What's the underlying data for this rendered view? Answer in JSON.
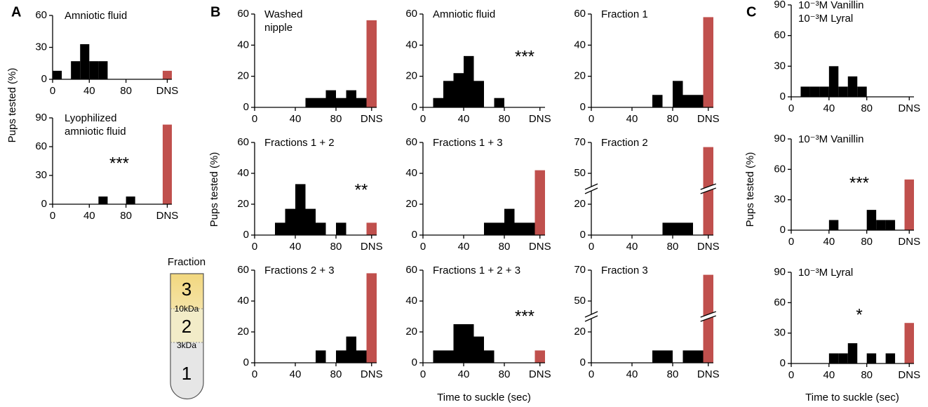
{
  "panels": [
    "A",
    "B",
    "C"
  ],
  "axis_labels": {
    "y": "Pups tested (%)",
    "x": "Time to suckle (sec)"
  },
  "fraction_diagram": {
    "title": "Fraction",
    "sections": [
      "3",
      "2",
      "1"
    ],
    "boundaries": [
      "10kDa",
      "3kDa"
    ]
  },
  "chart_data": [
    {
      "type": "histogram",
      "title": "Amniotic fluid",
      "bins": [
        0,
        10,
        20,
        30,
        40,
        50,
        60,
        70,
        80,
        90,
        100,
        110
      ],
      "values": [
        8,
        0,
        17,
        33,
        17,
        17,
        0,
        0,
        0,
        0,
        0
      ],
      "dns_value": 8,
      "color": "#000000",
      "dns_color": "#c0504d",
      "xlim": [
        0,
        130
      ],
      "xticks": [
        0,
        40,
        80,
        {
          "value": 125,
          "label": "DNS"
        }
      ],
      "ylim": [
        0,
        60
      ],
      "yticks": [
        0,
        30,
        60
      ]
    },
    {
      "type": "histogram",
      "title": "Lyophilized\namniotic fluid",
      "annotation": "***",
      "bins": [
        0,
        10,
        20,
        30,
        40,
        50,
        60,
        70,
        80,
        90,
        100,
        110
      ],
      "values": [
        0,
        0,
        0,
        0,
        0,
        8,
        0,
        0,
        8,
        0,
        0
      ],
      "dns_value": 83,
      "color": "#000000",
      "dns_color": "#c0504d",
      "xlim": [
        0,
        130
      ],
      "xticks": [
        0,
        40,
        80,
        {
          "value": 125,
          "label": "DNS"
        }
      ],
      "ylim": [
        0,
        90
      ],
      "yticks": [
        0,
        30,
        60,
        90
      ]
    },
    {
      "type": "histogram",
      "title": "Washed\nnipple",
      "bins": [
        0,
        10,
        20,
        30,
        40,
        50,
        60,
        70,
        80,
        90,
        100,
        110
      ],
      "values": [
        0,
        0,
        0,
        0,
        0,
        6,
        6,
        11,
        6,
        11,
        6
      ],
      "dns_value": 56,
      "color": "#000000",
      "dns_color": "#c0504d",
      "xlim": [
        0,
        120
      ],
      "xticks": [
        0,
        40,
        80,
        {
          "value": 115,
          "label": "DNS"
        }
      ],
      "ylim": [
        0,
        60
      ],
      "yticks": [
        0,
        20,
        40,
        60
      ]
    },
    {
      "type": "histogram",
      "title": "Amniotic fluid",
      "annotation": "***",
      "bins": [
        0,
        10,
        20,
        30,
        40,
        50,
        60,
        70,
        80,
        90,
        100,
        110
      ],
      "values": [
        0,
        6,
        17,
        22,
        33,
        17,
        0,
        6,
        0,
        0,
        0
      ],
      "dns_value": 0,
      "color": "#000000",
      "dns_color": "#c0504d",
      "xlim": [
        0,
        120
      ],
      "xticks": [
        0,
        40,
        80,
        {
          "value": 115,
          "label": "DNS"
        }
      ],
      "ylim": [
        0,
        60
      ],
      "yticks": [
        0,
        20,
        40,
        60
      ]
    },
    {
      "type": "histogram",
      "title": "Fraction 1",
      "bins": [
        0,
        10,
        20,
        30,
        40,
        50,
        60,
        70,
        80,
        90,
        100,
        110
      ],
      "values": [
        0,
        0,
        0,
        0,
        0,
        0,
        8,
        0,
        17,
        8,
        8
      ],
      "dns_value": 58,
      "color": "#000000",
      "dns_color": "#c0504d",
      "xlim": [
        0,
        120
      ],
      "xticks": [
        0,
        40,
        80,
        {
          "value": 115,
          "label": "DNS"
        }
      ],
      "ylim": [
        0,
        60
      ],
      "yticks": [
        0,
        20,
        40,
        60
      ]
    },
    {
      "type": "histogram",
      "title": "Fractions 1 + 2",
      "annotation": "**",
      "bins": [
        0,
        10,
        20,
        30,
        40,
        50,
        60,
        70,
        80,
        90,
        100,
        110
      ],
      "values": [
        0,
        0,
        8,
        17,
        33,
        17,
        8,
        0,
        8,
        0,
        0
      ],
      "dns_value": 8,
      "color": "#000000",
      "dns_color": "#c0504d",
      "xlim": [
        0,
        120
      ],
      "xticks": [
        0,
        40,
        80,
        {
          "value": 115,
          "label": "DNS"
        }
      ],
      "ylim": [
        0,
        60
      ],
      "yticks": [
        0,
        20,
        40,
        60
      ]
    },
    {
      "type": "histogram",
      "title": "Fractions 1 + 3",
      "bins": [
        0,
        10,
        20,
        30,
        40,
        50,
        60,
        70,
        80,
        90,
        100,
        110
      ],
      "values": [
        0,
        0,
        0,
        0,
        0,
        0,
        8,
        8,
        17,
        8,
        8
      ],
      "dns_value": 42,
      "color": "#000000",
      "dns_color": "#c0504d",
      "xlim": [
        0,
        120
      ],
      "xticks": [
        0,
        40,
        80,
        {
          "value": 115,
          "label": "DNS"
        }
      ],
      "ylim": [
        0,
        60
      ],
      "yticks": [
        0,
        20,
        40,
        60
      ]
    },
    {
      "type": "histogram",
      "title": "Fraction 2",
      "bins": [
        0,
        10,
        20,
        30,
        40,
        50,
        60,
        70,
        80,
        90,
        100,
        110
      ],
      "values": [
        0,
        0,
        0,
        0,
        0,
        0,
        0,
        8,
        8,
        8,
        0
      ],
      "dns_value": 67,
      "color": "#000000",
      "dns_color": "#c0504d",
      "xlim": [
        0,
        120
      ],
      "xticks": [
        0,
        40,
        80,
        {
          "value": 115,
          "label": "DNS"
        }
      ],
      "ylim": [
        0,
        70
      ],
      "yticks": [
        0,
        20,
        50,
        70
      ],
      "y_break": [
        25,
        45
      ]
    },
    {
      "type": "histogram",
      "title": "Fractions 2 + 3",
      "bins": [
        0,
        10,
        20,
        30,
        40,
        50,
        60,
        70,
        80,
        90,
        100,
        110
      ],
      "values": [
        0,
        0,
        0,
        0,
        0,
        0,
        8,
        0,
        8,
        17,
        8
      ],
      "dns_value": 58,
      "color": "#000000",
      "dns_color": "#c0504d",
      "xlim": [
        0,
        120
      ],
      "xticks": [
        0,
        40,
        80,
        {
          "value": 115,
          "label": "DNS"
        }
      ],
      "ylim": [
        0,
        60
      ],
      "yticks": [
        0,
        20,
        40,
        60
      ]
    },
    {
      "type": "histogram",
      "title": "Fractions 1 + 2 + 3",
      "annotation": "***",
      "bins": [
        0,
        10,
        20,
        30,
        40,
        50,
        60,
        70,
        80,
        90,
        100,
        110
      ],
      "values": [
        0,
        8,
        8,
        25,
        25,
        17,
        8,
        0,
        0,
        0,
        0
      ],
      "dns_value": 8,
      "color": "#000000",
      "dns_color": "#c0504d",
      "xlim": [
        0,
        120
      ],
      "xticks": [
        0,
        40,
        80,
        {
          "value": 115,
          "label": "DNS"
        }
      ],
      "ylim": [
        0,
        60
      ],
      "yticks": [
        0,
        20,
        40,
        60
      ]
    },
    {
      "type": "histogram",
      "title": "Fraction 3",
      "bins": [
        0,
        10,
        20,
        30,
        40,
        50,
        60,
        70,
        80,
        90,
        100,
        110
      ],
      "values": [
        0,
        0,
        0,
        0,
        0,
        0,
        8,
        8,
        0,
        8,
        8
      ],
      "dns_value": 67,
      "color": "#000000",
      "dns_color": "#c0504d",
      "xlim": [
        0,
        120
      ],
      "xticks": [
        0,
        40,
        80,
        {
          "value": 115,
          "label": "DNS"
        }
      ],
      "ylim": [
        0,
        70
      ],
      "yticks": [
        0,
        20,
        50,
        70
      ],
      "y_break": [
        25,
        45
      ]
    },
    {
      "type": "histogram",
      "title": "10⁻³M Vanillin\n10⁻³M Lyral",
      "bins": [
        0,
        10,
        20,
        30,
        40,
        50,
        60,
        70,
        80,
        90,
        100,
        110
      ],
      "values": [
        0,
        10,
        10,
        10,
        30,
        10,
        20,
        10,
        0,
        0,
        0
      ],
      "dns_value": 0,
      "color": "#000000",
      "dns_color": "#c0504d",
      "xlim": [
        0,
        130
      ],
      "xticks": [
        0,
        40,
        80,
        {
          "value": 125,
          "label": "DNS"
        }
      ],
      "ylim": [
        0,
        90
      ],
      "yticks": [
        0,
        30,
        60,
        90
      ]
    },
    {
      "type": "histogram",
      "title": "10⁻³M Vanillin",
      "annotation": "***",
      "bins": [
        0,
        10,
        20,
        30,
        40,
        50,
        60,
        70,
        80,
        90,
        100,
        110
      ],
      "values": [
        0,
        0,
        0,
        0,
        10,
        0,
        0,
        0,
        20,
        10,
        10
      ],
      "dns_value": 50,
      "color": "#000000",
      "dns_color": "#c0504d",
      "xlim": [
        0,
        130
      ],
      "xticks": [
        0,
        40,
        80,
        {
          "value": 125,
          "label": "DNS"
        }
      ],
      "ylim": [
        0,
        90
      ],
      "yticks": [
        0,
        30,
        60,
        90
      ]
    },
    {
      "type": "histogram",
      "title": "10⁻³M Lyral",
      "annotation": "*",
      "bins": [
        0,
        10,
        20,
        30,
        40,
        50,
        60,
        70,
        80,
        90,
        100,
        110
      ],
      "values": [
        0,
        0,
        0,
        0,
        10,
        10,
        20,
        0,
        10,
        0,
        10
      ],
      "dns_value": 40,
      "color": "#000000",
      "dns_color": "#c0504d",
      "xlim": [
        0,
        130
      ],
      "xticks": [
        0,
        40,
        80,
        {
          "value": 125,
          "label": "DNS"
        }
      ],
      "ylim": [
        0,
        90
      ],
      "yticks": [
        0,
        30,
        60,
        90
      ]
    }
  ]
}
